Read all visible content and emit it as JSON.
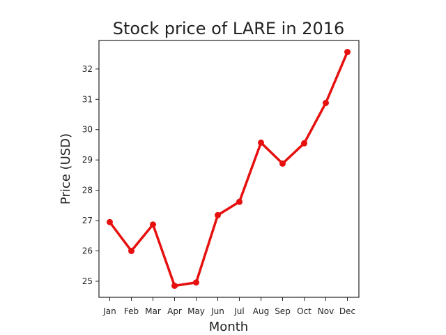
{
  "chart_data": {
    "type": "line",
    "title": "Stock price of LARE in 2016",
    "xlabel": "Month",
    "ylabel": "Price (USD)",
    "categories": [
      "Jan",
      "Feb",
      "Mar",
      "Apr",
      "May",
      "Jun",
      "Jul",
      "Aug",
      "Sep",
      "Oct",
      "Nov",
      "Dec"
    ],
    "series": [
      {
        "values": [
          26.95,
          26.0,
          26.87,
          24.85,
          24.96,
          27.18,
          27.62,
          29.57,
          28.88,
          29.55,
          30.88,
          32.56
        ],
        "color": "#e6100f"
      }
    ],
    "yticks": [
      25,
      26,
      27,
      28,
      29,
      30,
      31,
      32
    ],
    "ylim": [
      24.47,
      32.94
    ],
    "grid": false,
    "legend": "none"
  }
}
